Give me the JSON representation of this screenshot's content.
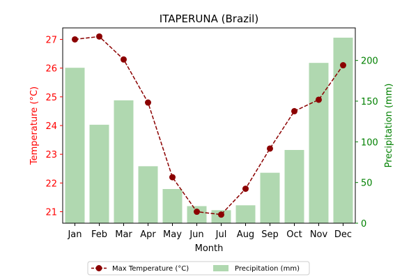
{
  "chart_data": {
    "type": "bar+line",
    "title": "ITAPERUNA (Brazil)",
    "xlabel": "Month",
    "categories": [
      "Jan",
      "Feb",
      "Mar",
      "Apr",
      "May",
      "Jun",
      "Jul",
      "Aug",
      "Sep",
      "Oct",
      "Nov",
      "Dec"
    ],
    "temperature": {
      "name": "Max Temperature (°C)",
      "axis_label": "Temperature (°C)",
      "color": "#8b0000",
      "axis_color": "#ff0000",
      "ylim": [
        20.6,
        27.4
      ],
      "ticks": [
        21,
        22,
        23,
        24,
        25,
        26,
        27
      ],
      "values": [
        27.0,
        27.1,
        26.3,
        24.8,
        22.2,
        21.0,
        20.9,
        21.8,
        23.2,
        24.5,
        24.9,
        26.1
      ]
    },
    "precipitation": {
      "name": "Precipitation (mm)",
      "axis_label": "Precipitation (mm)",
      "color": "#b0d8b0",
      "axis_color": "#008000",
      "ylim": [
        0,
        240
      ],
      "ticks": [
        0,
        50,
        100,
        150,
        200
      ],
      "values": [
        191,
        121,
        151,
        70,
        42,
        21,
        16,
        22,
        62,
        90,
        197,
        228
      ]
    },
    "legend": "bottom-center"
  }
}
